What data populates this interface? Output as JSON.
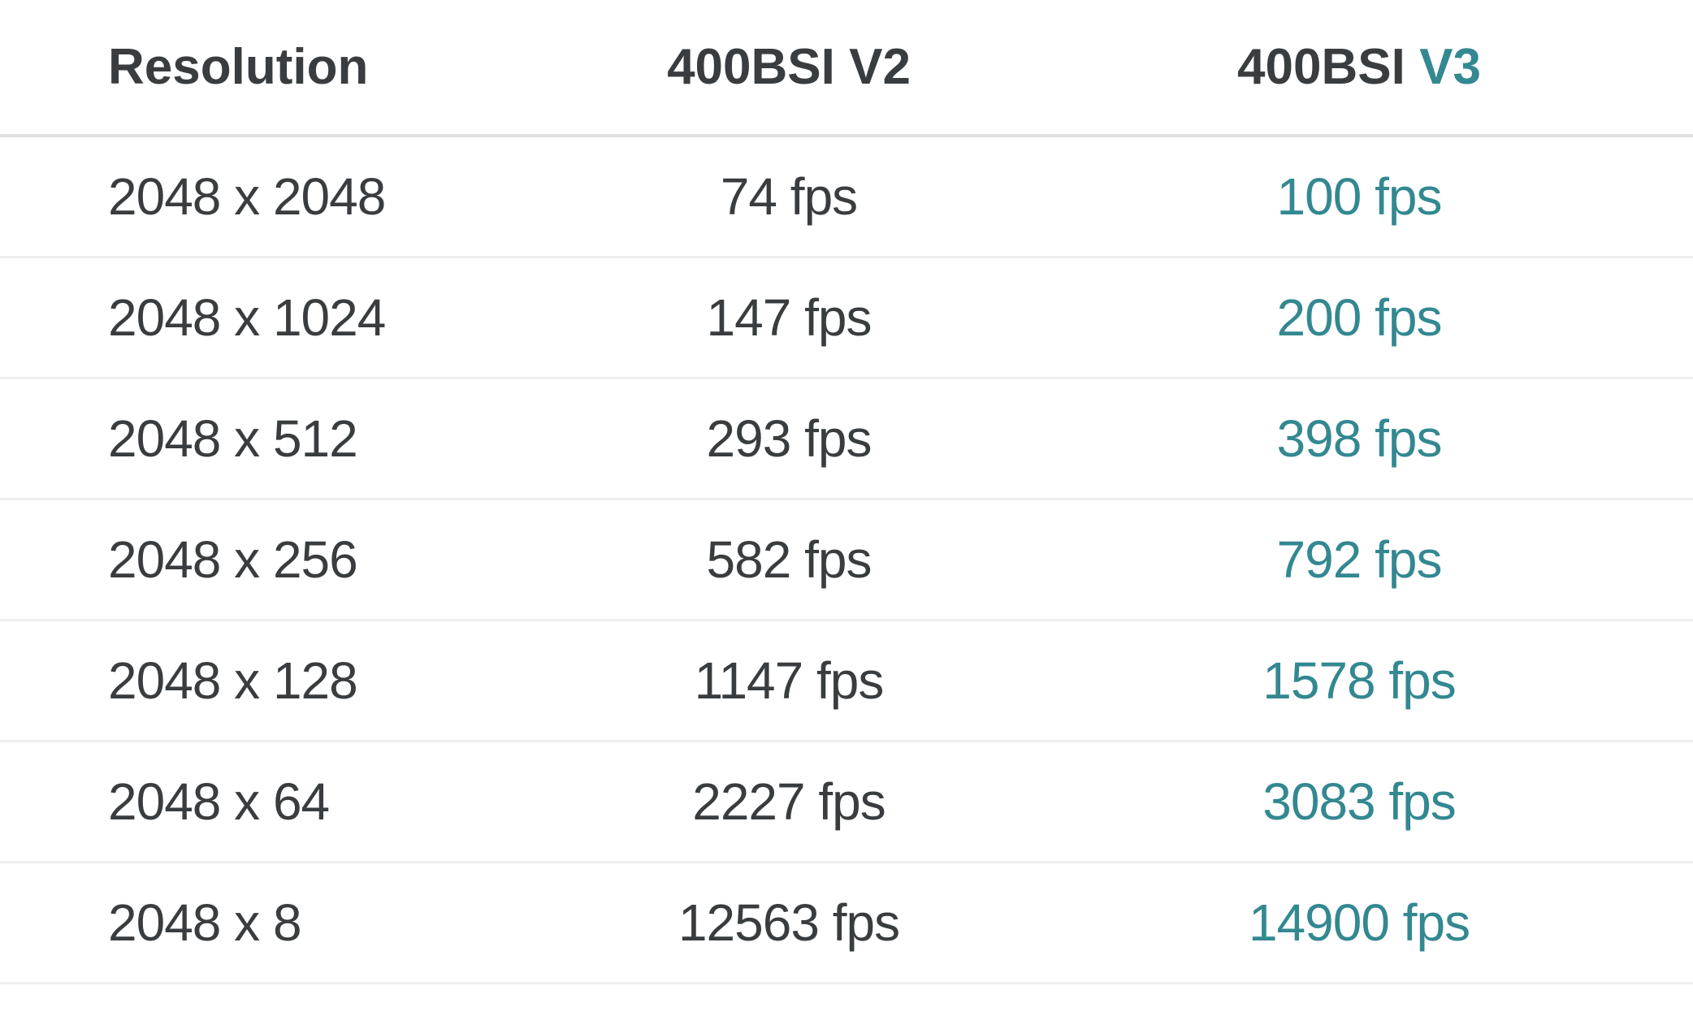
{
  "colors": {
    "text": "#3a3d3f",
    "accent": "#338891",
    "divider": "#e0e0e0"
  },
  "header": {
    "resolution": "Resolution",
    "v2": "400BSI V2",
    "v3_prefix": "400BSI",
    "v3_suffix": "V3"
  },
  "rows": [
    {
      "resolution": "2048 x 2048",
      "v2": "74 fps",
      "v3": "100 fps"
    },
    {
      "resolution": "2048 x 1024",
      "v2": "147 fps",
      "v3": "200 fps"
    },
    {
      "resolution": "2048 x 512",
      "v2": "293 fps",
      "v3": "398 fps"
    },
    {
      "resolution": "2048 x 256",
      "v2": "582 fps",
      "v3": "792 fps"
    },
    {
      "resolution": "2048 x 128",
      "v2": "1147 fps",
      "v3": "1578 fps"
    },
    {
      "resolution": "2048 x 64",
      "v2": "2227 fps",
      "v3": "3083 fps"
    },
    {
      "resolution": "2048 x 8",
      "v2": "12563 fps",
      "v3": "14900 fps"
    }
  ]
}
